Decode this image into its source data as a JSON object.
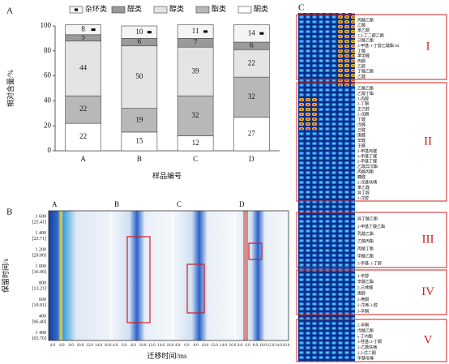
{
  "chart_data": {
    "type": "bar",
    "stacked": true,
    "panel_label": "A",
    "ylabel": "相对含量/%",
    "xlabel": "样品编号",
    "categories": [
      "A",
      "B",
      "C",
      "D"
    ],
    "series": [
      {
        "name": "酮类",
        "color": "#ffffff",
        "values": [
          22,
          15,
          12,
          27
        ]
      },
      {
        "name": "酯类",
        "color": "#b8b8b8",
        "values": [
          22,
          19,
          32,
          32
        ]
      },
      {
        "name": "醇类",
        "color": "#e4e4e4",
        "values": [
          44,
          50,
          39,
          22
        ]
      },
      {
        "name": "醛类",
        "color": "#9a9a9a",
        "values": [
          5,
          6,
          7,
          6
        ]
      },
      {
        "name": "杂环类",
        "color": "#f4f4f4",
        "values": [
          8,
          10,
          11,
          14
        ]
      }
    ],
    "legend_order": [
      "杂环类",
      "醛类",
      "醇类",
      "酯类",
      "酮类"
    ],
    "ylim": [
      0,
      100
    ],
    "yticks": [
      0,
      20,
      40,
      60,
      80,
      100
    ]
  },
  "panel_b": {
    "label": "B",
    "sub_labels": [
      "A",
      "B",
      "C",
      "D"
    ],
    "ylabel": "保留时间/s",
    "xlabel": "迁移时间/ms",
    "yticks": [
      {
        "rt": "1 600",
        "drift": "[25.41]"
      },
      {
        "rt": "1 400",
        "drift": "[23.71]"
      },
      {
        "rt": "1 200",
        "drift": "[20.00]"
      },
      {
        "rt": "1 000",
        "drift": "[16.00]"
      },
      {
        "rt": "800",
        "drift": "[13.21]"
      },
      {
        "rt": "600",
        "drift": "[10.01]"
      },
      {
        "rt": "400",
        "drift": "[06.40]"
      },
      {
        "rt": "1 400",
        "drift": "[03.70]"
      }
    ],
    "xticks": [
      "4.0",
      "6.0",
      "8.0",
      "10.0",
      "12.0",
      "14.0",
      "16.0"
    ]
  },
  "panel_c": {
    "label": "C",
    "groups": [
      {
        "id": "I",
        "names": [
          "丙酸乙酯",
          "乙酸",
          "苯乙酮",
          "2,3-丁二醇乙酯",
          "己酸乙酯",
          "3-甲基-1-丁醇乙酸酯-M",
          "丁酸",
          "苯甲醛",
          "丙酮",
          "乙醇",
          "丁酸乙酯",
          "乙醛"
        ]
      },
      {
        "id": "II",
        "names": [
          "乙酸乙酯",
          "乙酸丁酯",
          "1-丙醇",
          "2-丁酮",
          "正己醇",
          "2-戊酮",
          "丁醛",
          "戊醛",
          "己醛",
          "庚醛",
          "辛醛",
          "壬醛",
          "2-甲基丙醛",
          "3-甲基丁醛",
          "2-甲基丁醛",
          "乙酸异戊酯",
          "丙酸丙酯",
          "糠醛",
          "2-戊基呋喃",
          "苯乙醛",
          "异丁醇",
          "1-戊醇"
        ]
      },
      {
        "id": "III",
        "names": [
          "异丁酸乙酯",
          "2-甲基丁酸乙酯",
          "乳酸乙酯",
          "乙酸丙酯",
          "丙酸丁酯",
          "甲酸乙酯",
          "3-甲基-1-丁醇"
        ]
      },
      {
        "id": "IV",
        "names": [
          "1-辛醇",
          "辛酸乙酯",
          "2-己烯醛",
          "庚醇",
          "2-庚酮",
          "1-戊烯-3-醇",
          "3-辛酮"
        ]
      },
      {
        "id": "V",
        "names": [
          "2-辛酮",
          "戊酸乙酯",
          "γ-丁内酯",
          "3-羟基-2-丁酮",
          "2-乙酰呋喃",
          "2,3-戊二酮",
          "甲基吡嗪"
        ]
      }
    ]
  }
}
